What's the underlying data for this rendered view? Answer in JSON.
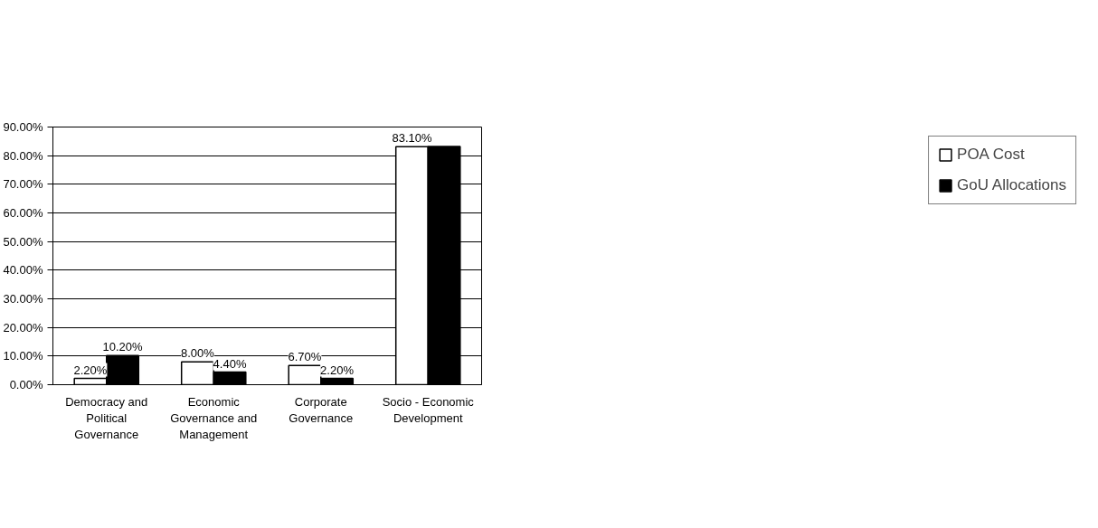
{
  "chart_data": {
    "type": "bar",
    "categories": [
      "Democracy and\nPolitical\nGovernance",
      "Economic\nGovernance and\nManagement",
      "Corporate\nGovernance",
      "Socio - Economic\nDevelopment"
    ],
    "series": [
      {
        "name": "POA Cost",
        "color": "#ffffff",
        "values": [
          2.2,
          8.0,
          6.7,
          83.1
        ],
        "value_labels": [
          "2.20%",
          "8.00%",
          "6.70%",
          "83.10%"
        ]
      },
      {
        "name": "GoU Allocations",
        "color": "#000000",
        "values": [
          10.2,
          4.4,
          2.2,
          83.2
        ],
        "value_labels": [
          "10.20%",
          "4.40%",
          "2.20%",
          null
        ]
      }
    ],
    "ylim": [
      0,
      90
    ],
    "yticks": [
      {
        "value": 0,
        "label": "0.00%"
      },
      {
        "value": 10,
        "label": "10.00%"
      },
      {
        "value": 20,
        "label": "20.00%"
      },
      {
        "value": 30,
        "label": "30.00%"
      },
      {
        "value": 40,
        "label": "40.00%"
      },
      {
        "value": 50,
        "label": "50.00%"
      },
      {
        "value": 60,
        "label": "60.00%"
      },
      {
        "value": 70,
        "label": "70.00%"
      },
      {
        "value": 80,
        "label": "80.00%"
      },
      {
        "value": 90,
        "label": "90.00%"
      }
    ],
    "grid": "y",
    "legend": "right"
  }
}
